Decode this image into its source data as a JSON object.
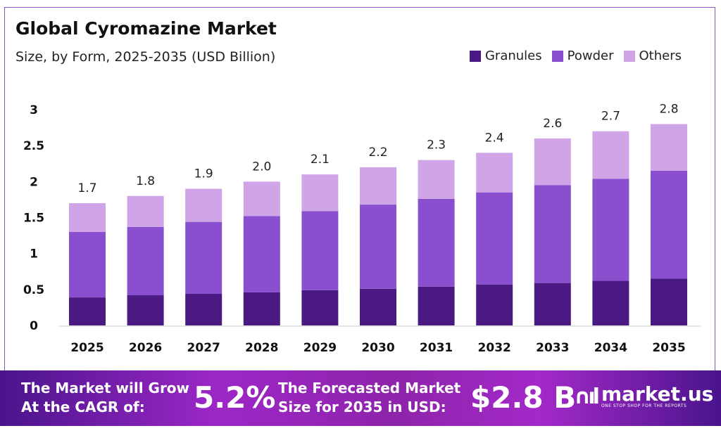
{
  "chart_data": {
    "type": "bar",
    "stacked": true,
    "title": "Global Cyromazine Market",
    "subtitle": "Size, by Form, 2025-2035 (USD Billion)",
    "categories": [
      "2025",
      "2026",
      "2027",
      "2028",
      "2029",
      "2030",
      "2031",
      "2032",
      "2033",
      "2034",
      "2035"
    ],
    "series": [
      {
        "name": "Granules",
        "color": "#4a1a82",
        "values": [
          0.39,
          0.42,
          0.44,
          0.46,
          0.49,
          0.51,
          0.54,
          0.57,
          0.59,
          0.62,
          0.65
        ]
      },
      {
        "name": "Powder",
        "color": "#8a4fcf",
        "values": [
          0.91,
          0.95,
          1.0,
          1.06,
          1.1,
          1.17,
          1.22,
          1.28,
          1.36,
          1.42,
          1.5
        ]
      },
      {
        "name": "Others",
        "color": "#cfa5e8",
        "values": [
          0.4,
          0.43,
          0.46,
          0.48,
          0.51,
          0.52,
          0.54,
          0.55,
          0.65,
          0.66,
          0.65
        ]
      }
    ],
    "totals_labels": [
      "1.7",
      "1.8",
      "1.9",
      "2.0",
      "2.1",
      "2.2",
      "2.3",
      "2.4",
      "2.6",
      "2.7",
      "2.8"
    ],
    "yticks": [
      "0",
      "0.5",
      "1",
      "1.5",
      "2",
      "2.5",
      "3"
    ],
    "ylim": [
      0,
      3
    ],
    "grid": false,
    "legend": "top-right"
  },
  "footer": {
    "cagr_text_1": "The Market will Grow",
    "cagr_text_2": "At the CAGR of:",
    "cagr_value": "5.2%",
    "forecast_text_1": "The Forecasted Market",
    "forecast_text_2": "Size for 2035 in USD:",
    "forecast_value": "$2.8 B",
    "logo_text": "market.us",
    "logo_tagline": "ONE STOP SHOP FOR THE REPORTS"
  }
}
